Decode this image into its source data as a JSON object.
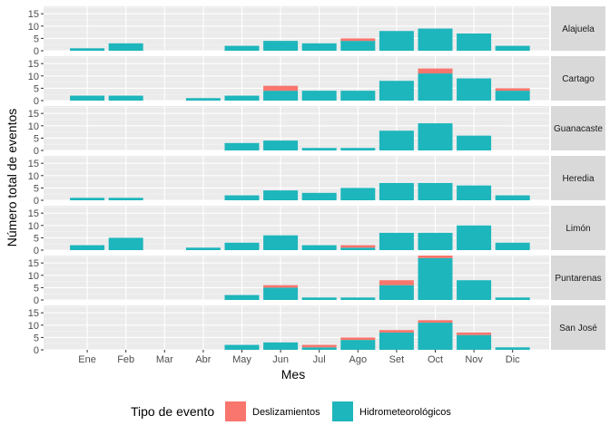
{
  "chart_data": {
    "type": "bar",
    "stacked": true,
    "faceted": true,
    "xlabel": "Mes",
    "ylabel": "Número total de eventos",
    "ylim": [
      0,
      18
    ],
    "yticks": [
      0,
      5,
      10,
      15
    ],
    "grid": true,
    "legend_position": "bottom",
    "legend_title": "Tipo de evento",
    "categories": [
      "Ene",
      "Feb",
      "Mar",
      "Abr",
      "May",
      "Jun",
      "Jul",
      "Ago",
      "Set",
      "Oct",
      "Nov",
      "Dic"
    ],
    "series_meta": [
      {
        "key": "deslizamientos",
        "name": "Deslizamientos",
        "color": "#F8766D"
      },
      {
        "key": "hidrometeorologicos",
        "name": "Hidrometeorológicos",
        "color": "#1DB6BC"
      }
    ],
    "panels": [
      {
        "name": "Alajuela",
        "hidrometeorologicos": [
          1,
          3,
          0,
          0,
          2,
          4,
          3,
          4,
          8,
          9,
          7,
          2
        ],
        "deslizamientos": [
          0,
          0,
          0,
          0,
          0,
          0,
          0,
          1,
          0,
          0,
          0,
          0
        ]
      },
      {
        "name": "Cartago",
        "hidrometeorologicos": [
          2,
          2,
          0,
          1,
          2,
          4,
          4,
          4,
          8,
          11,
          9,
          4
        ],
        "deslizamientos": [
          0,
          0,
          0,
          0,
          0,
          2,
          0,
          0,
          0,
          2,
          0,
          1
        ]
      },
      {
        "name": "Guanacaste",
        "hidrometeorologicos": [
          0,
          0,
          0,
          0,
          3,
          4,
          1,
          1,
          8,
          11,
          6,
          0
        ],
        "deslizamientos": [
          0,
          0,
          0,
          0,
          0,
          0,
          0,
          0,
          0,
          0,
          0,
          0
        ]
      },
      {
        "name": "Heredia",
        "hidrometeorologicos": [
          1,
          1,
          0,
          0,
          2,
          4,
          3,
          5,
          7,
          7,
          6,
          2
        ],
        "deslizamientos": [
          0,
          0,
          0,
          0,
          0,
          0,
          0,
          0,
          0,
          0,
          0,
          0
        ]
      },
      {
        "name": "Limón",
        "hidrometeorologicos": [
          2,
          5,
          0,
          1,
          3,
          6,
          2,
          1,
          7,
          7,
          10,
          3
        ],
        "deslizamientos": [
          0,
          0,
          0,
          0,
          0,
          0,
          0,
          1,
          0,
          0,
          0,
          0
        ]
      },
      {
        "name": "Puntarenas",
        "hidrometeorologicos": [
          0,
          0,
          0,
          0,
          2,
          5,
          1,
          1,
          6,
          17,
          8,
          1
        ],
        "deslizamientos": [
          0,
          0,
          0,
          0,
          0,
          1,
          0,
          0,
          2,
          1,
          0,
          0
        ]
      },
      {
        "name": "San José",
        "hidrometeorologicos": [
          0,
          0,
          0,
          0,
          2,
          3,
          1,
          4,
          7,
          11,
          6,
          1
        ],
        "deslizamientos": [
          0,
          0,
          0,
          0,
          0,
          0,
          1,
          1,
          1,
          1,
          1,
          0
        ]
      }
    ]
  }
}
